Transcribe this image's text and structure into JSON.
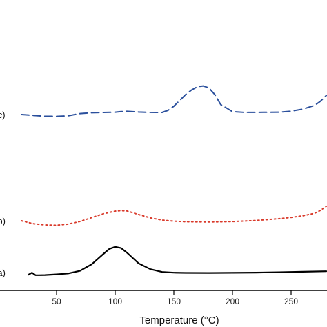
{
  "chart_data": {
    "type": "line",
    "title": "",
    "xlabel": "Temperature (°C)",
    "ylabel": "",
    "xlim": [
      20,
      280
    ],
    "x_ticks": [
      50,
      100,
      150,
      200,
      250
    ],
    "y_units": "offset traces, arbitrary units",
    "grid": false,
    "legend": "none",
    "series": [
      {
        "name": "(a)",
        "color": "#000000",
        "line_style": "solid",
        "x": [
          26,
          27.5,
          29,
          30.5,
          32,
          35,
          40,
          50,
          60,
          70,
          80,
          90,
          95,
          100,
          105,
          110,
          115,
          120,
          130,
          140,
          150,
          160,
          180,
          200,
          220,
          240,
          260,
          280
        ],
        "y": [
          -2.6,
          -1.4,
          -0.2,
          -1.6,
          -3.2,
          -3.2,
          -3.0,
          -2.2,
          -1.1,
          2.0,
          10.0,
          22.5,
          28.5,
          31.0,
          29.5,
          24.0,
          17.5,
          11.0,
          4.0,
          0.7,
          -0.2,
          -0.4,
          -0.5,
          -0.3,
          -0.1,
          0.3,
          0.9,
          1.5
        ]
      },
      {
        "name": "(b)",
        "color": "#d93a2b",
        "line_style": "dotted",
        "x": [
          20,
          30,
          40,
          50,
          60,
          70,
          80,
          90,
          100,
          105,
          110,
          120,
          130,
          140,
          150,
          160,
          180,
          200,
          220,
          240,
          250,
          260,
          270,
          275,
          280
        ],
        "y": [
          0,
          -3.5,
          -5.0,
          -5.4,
          -4.0,
          -0.8,
          3.8,
          8.5,
          11.6,
          12.2,
          11.8,
          7.5,
          3.5,
          0.8,
          -0.5,
          -1.2,
          -1.5,
          -1.0,
          0.3,
          2.5,
          4.0,
          6.0,
          9.0,
          12.5,
          17.5
        ]
      },
      {
        "name": "(c)",
        "color": "#2a4f9c",
        "line_style": "dashed",
        "x": [
          20,
          30,
          40,
          50,
          60,
          70,
          80,
          90,
          100,
          105,
          110,
          120,
          130,
          140,
          145,
          150,
          155,
          160,
          165,
          170,
          175,
          180,
          185,
          190,
          200,
          210,
          220,
          240,
          250,
          260,
          270,
          275,
          280
        ],
        "y": [
          0,
          -1.0,
          -2.0,
          -2.2,
          -1.5,
          1.2,
          2.2,
          2.5,
          2.8,
          3.5,
          3.8,
          3.0,
          2.6,
          2.5,
          5.0,
          10.0,
          17.0,
          24.0,
          29.5,
          33.5,
          34.5,
          32.0,
          24.0,
          12.0,
          3.5,
          2.6,
          2.6,
          2.8,
          4.0,
          6.5,
          11.0,
          16.0,
          23.0
        ]
      }
    ]
  }
}
